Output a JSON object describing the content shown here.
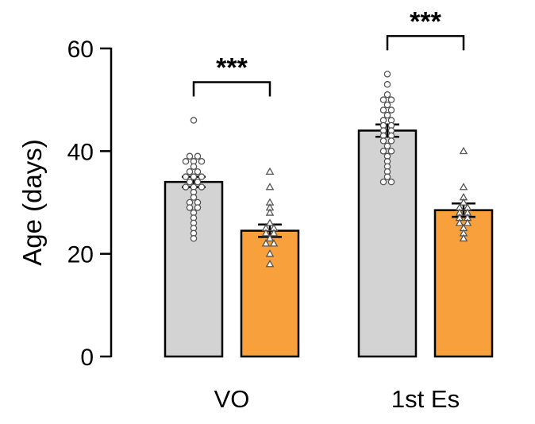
{
  "chart_data": {
    "type": "bar",
    "title": "",
    "xlabel": "",
    "ylabel": "Age (days)",
    "ylim": [
      0,
      60
    ],
    "yticks": [
      "0",
      "20",
      "40",
      "60"
    ],
    "categories": [
      "VO",
      "1st Es"
    ],
    "series": [
      {
        "color": "#d3d3d3",
        "marker": "circle",
        "values": [
          34,
          44
        ],
        "errors": [
          1.0,
          1.2
        ],
        "points": [
          [
            46,
            39,
            39,
            38,
            38,
            38,
            37,
            36,
            36,
            35,
            35,
            35,
            34,
            34,
            33,
            33,
            33,
            32,
            31,
            30,
            30,
            29,
            29,
            28,
            27,
            26,
            25,
            24,
            23
          ],
          [
            55,
            53,
            51,
            50,
            50,
            49,
            48,
            48,
            47,
            46,
            46,
            45,
            45,
            44,
            44,
            43,
            43,
            42,
            42,
            41,
            40,
            40,
            39,
            38,
            37,
            36,
            35,
            34,
            34
          ]
        ]
      },
      {
        "color": "#f7a03c",
        "marker": "triangle",
        "values": [
          24.5,
          28.5
        ],
        "errors": [
          1.2,
          1.3
        ],
        "points": [
          [
            36,
            33,
            30,
            29,
            28,
            26,
            25,
            25,
            24,
            24,
            23,
            22,
            22,
            20,
            18
          ],
          [
            40,
            33,
            31,
            30,
            29,
            29,
            28,
            28,
            27,
            27,
            26,
            26,
            25,
            24,
            23
          ]
        ]
      }
    ],
    "significance": [
      "***",
      "***"
    ],
    "grid": false,
    "legend": "none"
  }
}
